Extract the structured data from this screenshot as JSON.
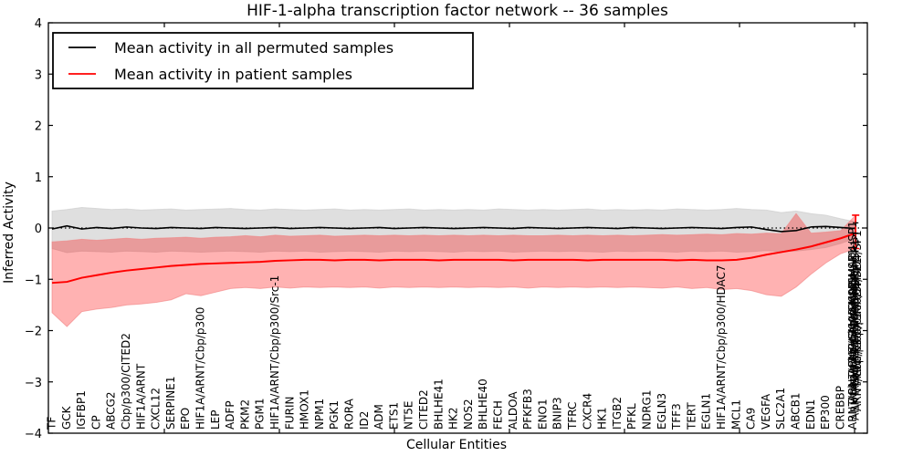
{
  "chart_data": {
    "type": "line",
    "title": "HIF-1-alpha transcription factor network -- 36 samples",
    "xlabel": "Cellular Entities",
    "ylabel": "Inferred Activity",
    "ylim": [
      -4,
      4
    ],
    "yticks": [
      4,
      3,
      2,
      1,
      0,
      -1,
      -2,
      -3,
      -4
    ],
    "grid": false,
    "zero_line_style": "dotted",
    "legend_position": "upper left",
    "categories": [
      "TF",
      "GCK",
      "IGFBP1",
      "CP",
      "ABCG2",
      "Cbp/p300/CITED2",
      "HIF1A/ARNT",
      "CXCL12",
      "SERPINE1",
      "EPO",
      "HIF1A/ARNT/Cbp/p300",
      "LEP",
      "ADFP",
      "PKM2",
      "PGM1",
      "HIF1A/ARNT/Cbp/p300/Src-1",
      "FURIN",
      "HMOX1",
      "NPM1",
      "PGK1",
      "RORA",
      "ID2",
      "ADM",
      "ETS1",
      "NT5E",
      "CITED2",
      "BHLHE41",
      "HK2",
      "NOS2",
      "BHLHE40",
      "FECH",
      "ALDOA",
      "PFKFB3",
      "ENO1",
      "BNIP3",
      "TFRC",
      "CXCR4",
      "HK1",
      "ITGB2",
      "PFKL",
      "NDRG1",
      "EGLN3",
      "TFF3",
      "TERT",
      "EGLN1",
      "HIF1A/ARNT/Cbp/p300/HDAC7",
      "MCL1",
      "CA9",
      "VEGFA",
      "SLC2A1",
      "ABCB1",
      "EDN1",
      "EP300",
      "CREBBP",
      "ARNT/Cbp/p300/SMAD4/SP1"
    ],
    "overlap_cluster": {
      "index": 54,
      "visible_top_label": "ARNT/Cbp/p300/SMAD4/SP1",
      "note": "many x tick labels overlap at the last position forming a dense black cluster"
    },
    "series": [
      {
        "name": "Mean activity in all permuted samples",
        "color": "#000000",
        "values": [
          -0.02,
          0.04,
          -0.02,
          0.01,
          -0.01,
          0.02,
          0.0,
          -0.01,
          0.01,
          0.0,
          -0.01,
          0.01,
          0.0,
          -0.01,
          0.0,
          0.01,
          -0.01,
          0.0,
          0.01,
          0.0,
          -0.01,
          0.0,
          0.01,
          -0.01,
          0.0,
          0.01,
          0.0,
          -0.01,
          0.0,
          0.01,
          0.0,
          -0.01,
          0.01,
          0.0,
          -0.01,
          0.0,
          0.01,
          0.0,
          -0.01,
          0.01,
          0.0,
          -0.01,
          0.0,
          0.01,
          0.0,
          -0.01,
          0.01,
          0.02,
          -0.03,
          -0.07,
          -0.05,
          0.02,
          0.03,
          0.01,
          -0.01
        ]
      },
      {
        "name": "Mean activity in patient samples",
        "color": "#ff0000",
        "values": [
          -1.07,
          -1.05,
          -0.97,
          -0.92,
          -0.87,
          -0.83,
          -0.8,
          -0.77,
          -0.74,
          -0.72,
          -0.7,
          -0.69,
          -0.68,
          -0.67,
          -0.66,
          -0.64,
          -0.63,
          -0.62,
          -0.62,
          -0.63,
          -0.62,
          -0.62,
          -0.63,
          -0.62,
          -0.62,
          -0.62,
          -0.63,
          -0.62,
          -0.62,
          -0.62,
          -0.62,
          -0.63,
          -0.62,
          -0.62,
          -0.62,
          -0.62,
          -0.63,
          -0.62,
          -0.62,
          -0.62,
          -0.62,
          -0.62,
          -0.63,
          -0.62,
          -0.63,
          -0.63,
          -0.62,
          -0.58,
          -0.52,
          -0.47,
          -0.42,
          -0.36,
          -0.28,
          -0.2,
          -0.1
        ]
      }
    ],
    "bands": {
      "permuted": {
        "color": "#dfdfdf",
        "edge_color": "#c8c8c8",
        "alpha": 1,
        "top": [
          0.33,
          0.36,
          0.4,
          0.38,
          0.36,
          0.37,
          0.35,
          0.36,
          0.37,
          0.35,
          0.36,
          0.37,
          0.38,
          0.36,
          0.35,
          0.37,
          0.36,
          0.35,
          0.36,
          0.37,
          0.35,
          0.36,
          0.35,
          0.36,
          0.37,
          0.35,
          0.36,
          0.35,
          0.36,
          0.35,
          0.37,
          0.36,
          0.35,
          0.36,
          0.35,
          0.36,
          0.37,
          0.35,
          0.36,
          0.35,
          0.36,
          0.35,
          0.37,
          0.36,
          0.35,
          0.36,
          0.38,
          0.36,
          0.35,
          0.3,
          0.33,
          0.28,
          0.25,
          0.18,
          0.12
        ],
        "bottom": [
          -0.4,
          -0.48,
          -0.45,
          -0.46,
          -0.47,
          -0.45,
          -0.46,
          -0.47,
          -0.45,
          -0.46,
          -0.47,
          -0.46,
          -0.45,
          -0.46,
          -0.47,
          -0.45,
          -0.46,
          -0.45,
          -0.47,
          -0.46,
          -0.45,
          -0.46,
          -0.47,
          -0.45,
          -0.46,
          -0.45,
          -0.46,
          -0.47,
          -0.45,
          -0.46,
          -0.45,
          -0.47,
          -0.46,
          -0.45,
          -0.46,
          -0.45,
          -0.46,
          -0.47,
          -0.45,
          -0.46,
          -0.45,
          -0.46,
          -0.47,
          -0.45,
          -0.46,
          -0.45,
          -0.47,
          -0.46,
          -0.44,
          -0.46,
          -0.45,
          -0.42,
          -0.38,
          -0.3,
          -0.2
        ]
      },
      "patient": {
        "color": "#ff0000",
        "edge_color": "#f08080",
        "alpha": 0.3,
        "top": [
          -0.27,
          -0.25,
          -0.22,
          -0.24,
          -0.22,
          -0.2,
          -0.22,
          -0.2,
          -0.19,
          -0.18,
          -0.2,
          -0.18,
          -0.17,
          -0.15,
          -0.17,
          -0.14,
          -0.16,
          -0.15,
          -0.14,
          -0.16,
          -0.15,
          -0.14,
          -0.15,
          -0.14,
          -0.15,
          -0.14,
          -0.15,
          -0.14,
          -0.15,
          -0.14,
          -0.15,
          -0.14,
          -0.15,
          -0.15,
          -0.14,
          -0.15,
          -0.14,
          -0.15,
          -0.14,
          -0.15,
          -0.14,
          -0.13,
          -0.14,
          -0.13,
          -0.12,
          -0.13,
          -0.11,
          -0.12,
          -0.1,
          -0.11,
          0.28,
          -0.1,
          -0.08,
          -0.05,
          0.25
        ],
        "bottom": [
          -1.65,
          -1.92,
          -1.63,
          -1.58,
          -1.55,
          -1.5,
          -1.48,
          -1.45,
          -1.4,
          -1.28,
          -1.32,
          -1.25,
          -1.18,
          -1.16,
          -1.18,
          -1.15,
          -1.17,
          -1.15,
          -1.16,
          -1.15,
          -1.16,
          -1.15,
          -1.17,
          -1.15,
          -1.16,
          -1.15,
          -1.16,
          -1.15,
          -1.16,
          -1.15,
          -1.16,
          -1.15,
          -1.17,
          -1.15,
          -1.16,
          -1.15,
          -1.16,
          -1.15,
          -1.16,
          -1.15,
          -1.16,
          -1.17,
          -1.15,
          -1.18,
          -1.16,
          -1.2,
          -1.18,
          -1.22,
          -1.3,
          -1.33,
          -1.15,
          -0.9,
          -0.68,
          -0.5,
          -0.4
        ]
      }
    }
  }
}
